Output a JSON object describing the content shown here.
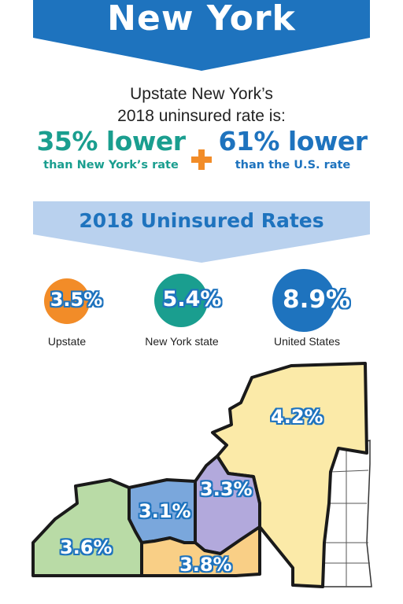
{
  "header": {
    "title": "New York"
  },
  "intro": {
    "line1": "Upstate New York’s",
    "line2": "2018 uninsured rate is:"
  },
  "stats": [
    {
      "value": "35% lower",
      "caption": "than New York’s rate",
      "color": "#1a9e8f"
    },
    {
      "value": "61% lower",
      "caption": "than the U.S. rate",
      "color": "#1e73be"
    }
  ],
  "rates_section": {
    "title": "2018 Uninsured Rates"
  },
  "rates": [
    {
      "value": "3.5%",
      "label": "Upstate",
      "color": "#f28c28"
    },
    {
      "value": "5.4%",
      "label": "New York state",
      "color": "#1a9e8f"
    },
    {
      "value": "8.9%",
      "label": "United States",
      "color": "#1e73be"
    }
  ],
  "map": {
    "regions": [
      {
        "value": "4.2%",
        "color": "#fbeaa8"
      },
      {
        "value": "3.3%",
        "color": "#b2a9dc"
      },
      {
        "value": "3.1%",
        "color": "#7aa7dc"
      },
      {
        "value": "3.6%",
        "color": "#b9dba6"
      },
      {
        "value": "3.8%",
        "color": "#f9cf86"
      }
    ]
  }
}
